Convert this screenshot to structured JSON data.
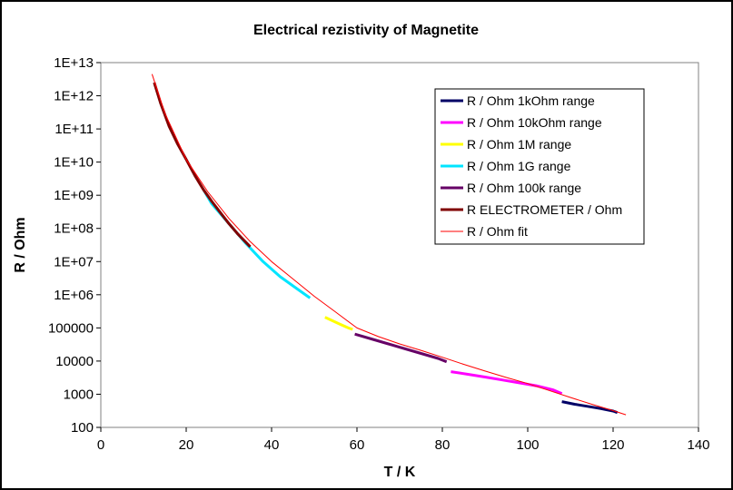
{
  "chart_data": {
    "type": "line",
    "title": "Electrical rezistivity of Magnetite",
    "xlabel": "T / K",
    "ylabel": "R / Ohm",
    "xlim": [
      0,
      140
    ],
    "x_ticks": [
      0,
      20,
      40,
      60,
      80,
      100,
      120,
      140
    ],
    "ylim": [
      100,
      10000000000000.0
    ],
    "y_scale": "log",
    "y_ticks": [
      100,
      1000,
      10000,
      100000,
      1000000,
      10000000,
      100000000,
      1000000000,
      10000000000,
      100000000000,
      1000000000000,
      10000000000000
    ],
    "y_tick_labels": [
      "100",
      "1000",
      "10000",
      "100000",
      "1E+06",
      "1E+07",
      "1E+08",
      "1E+09",
      "1E+10",
      "1E+11",
      "1E+12",
      "1E+13"
    ],
    "grid": false,
    "legend_position": "top-right",
    "series": [
      {
        "name": "R / Ohm 1kOhm range",
        "color": "#000066",
        "width": 3,
        "x": [
          108,
          111,
          114,
          117,
          120,
          121
        ],
        "y": [
          600,
          500,
          430,
          370,
          310,
          280
        ]
      },
      {
        "name": "R / Ohm 10kOhm range",
        "color": "#ff00ff",
        "width": 3,
        "x": [
          82,
          86,
          90,
          94,
          98,
          102,
          106,
          108
        ],
        "y": [
          4800,
          4000,
          3300,
          2700,
          2200,
          1800,
          1350,
          1050
        ]
      },
      {
        "name": "R / Ohm 1M range",
        "color": "#ffff00",
        "width": 3,
        "x": [
          52.5,
          54,
          56,
          58,
          59
        ],
        "y": [
          210000,
          170000,
          130000,
          100000,
          90000
        ]
      },
      {
        "name": "R / Ohm 1G range",
        "color": "#00e5ff",
        "width": 3,
        "x": [
          24,
          26,
          30,
          34,
          38,
          42,
          46,
          49
        ],
        "y": [
          1500000000,
          550000000,
          140000000,
          35000000,
          10000000,
          3500000,
          1500000,
          800000
        ]
      },
      {
        "name": "R / Ohm 100k range",
        "color": "#660066",
        "width": 3,
        "x": [
          59.5,
          63,
          67,
          71,
          75,
          79,
          81
        ],
        "y": [
          65000,
          48000,
          34000,
          24000,
          17000,
          12000,
          9500
        ]
      },
      {
        "name": "R ELECTROMETER / Ohm",
        "color": "#800000",
        "width": 3,
        "x": [
          12.5,
          14,
          16,
          18,
          20,
          22,
          24,
          26,
          28,
          30,
          32,
          35
        ],
        "y": [
          2500000000000,
          600000000000,
          120000000000,
          35000000000,
          12000000000,
          4000000000,
          1500000000,
          650000000,
          300000000,
          140000000,
          70000000,
          28000000
        ]
      },
      {
        "name": "R / Ohm fit",
        "color": "#ff0000",
        "width": 1,
        "x": [
          12,
          15,
          20,
          25,
          30,
          35,
          40,
          45,
          50,
          55,
          60,
          65,
          70,
          75,
          80,
          85,
          90,
          95,
          100,
          105,
          110,
          115,
          120,
          123
        ],
        "y": [
          4500000000000,
          300000000000,
          12000000000,
          1300000000,
          200000000,
          40000000,
          10000000,
          3000000,
          900000,
          300000,
          100000,
          55000,
          33000,
          21000,
          13000,
          8000,
          5000,
          3200,
          2100,
          1300,
          800,
          500,
          320,
          240
        ]
      }
    ]
  }
}
